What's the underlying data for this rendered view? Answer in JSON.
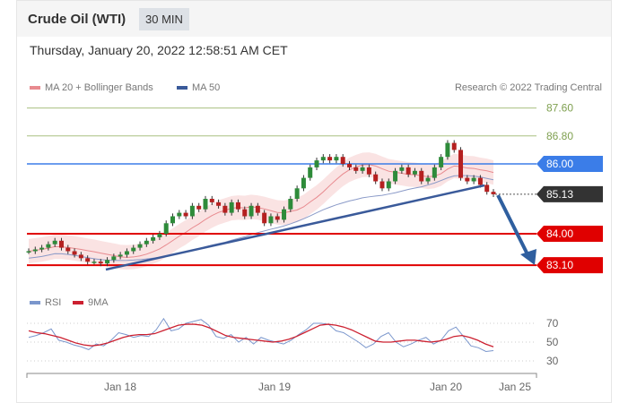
{
  "header": {
    "title": "Crude Oil (WTI)",
    "timeframe": "30 MIN",
    "datetime": "Thursday, January 20, 2022 12:58:51 AM CET"
  },
  "legend": {
    "ma20": "MA 20 + Bollinger Bands",
    "ma50": "MA 50",
    "credit": "Research © 2022 Trading Central",
    "rsi": "RSI",
    "ma9": "9MA"
  },
  "colors": {
    "ma20": "#e88a8f",
    "ma50": "#3a5a9a",
    "resistance": "#3b7de8",
    "support": "#e00000",
    "current": "#333333",
    "target_line": "#a8c080",
    "rsi": "#7a96cc",
    "ma9": "#cc2030"
  },
  "chart_data": {
    "type": "candlestick",
    "price_levels": [
      {
        "label": "87.60",
        "value": 87.6,
        "kind": "target"
      },
      {
        "label": "86.80",
        "value": 86.8,
        "kind": "target"
      },
      {
        "label": "86.00",
        "value": 86.0,
        "kind": "resistance"
      },
      {
        "label": "85.13",
        "value": 85.13,
        "kind": "current"
      },
      {
        "label": "84.00",
        "value": 84.0,
        "kind": "support"
      },
      {
        "label": "83.10",
        "value": 83.1,
        "kind": "support"
      }
    ],
    "close": [
      83.5,
      83.55,
      83.6,
      83.7,
      83.8,
      83.6,
      83.5,
      83.4,
      83.3,
      83.2,
      83.2,
      83.15,
      83.25,
      83.35,
      83.4,
      83.5,
      83.6,
      83.7,
      83.8,
      83.9,
      84.0,
      84.3,
      84.5,
      84.6,
      84.5,
      84.8,
      84.7,
      85.0,
      84.9,
      84.8,
      84.6,
      84.9,
      84.7,
      84.5,
      84.8,
      84.6,
      84.3,
      84.5,
      84.4,
      84.7,
      85.0,
      85.3,
      85.6,
      85.9,
      86.1,
      86.2,
      86.1,
      86.2,
      86.0,
      85.9,
      85.8,
      85.9,
      85.7,
      85.5,
      85.3,
      85.5,
      85.8,
      85.9,
      85.7,
      85.8,
      85.5,
      85.6,
      85.9,
      86.2,
      86.6,
      86.4,
      85.6,
      85.5,
      85.6,
      85.4,
      85.2,
      85.13
    ],
    "rsi": [
      55,
      57,
      60,
      64,
      52,
      50,
      47,
      45,
      42,
      48,
      46,
      52,
      60,
      58,
      55,
      57,
      56,
      63,
      75,
      62,
      64,
      70,
      72,
      74,
      68,
      56,
      54,
      58,
      50,
      55,
      48,
      55,
      52,
      50,
      48,
      52,
      58,
      63,
      70,
      70,
      69,
      62,
      60,
      55,
      50,
      44,
      48,
      56,
      60,
      50,
      45,
      48,
      52,
      55,
      48,
      52,
      62,
      66,
      56,
      46,
      44,
      40,
      41
    ],
    "ma9": [
      62,
      60,
      59,
      57,
      55,
      52,
      49,
      47,
      46,
      47,
      49,
      52,
      55,
      57,
      58,
      58,
      59,
      62,
      65,
      68,
      69,
      69,
      68,
      65,
      61,
      57,
      55,
      54,
      53,
      52,
      51,
      50,
      51,
      53,
      56,
      60,
      64,
      68,
      69,
      68,
      66,
      63,
      59,
      55,
      51,
      50,
      50,
      51,
      52,
      52,
      51,
      50,
      51,
      53,
      56,
      57,
      55,
      52,
      48,
      45
    ],
    "rsi_levels": [
      70,
      50,
      30
    ],
    "x_ticks": [
      "Jan 18",
      "Jan 19",
      "Jan 20",
      "Jan 25"
    ]
  }
}
